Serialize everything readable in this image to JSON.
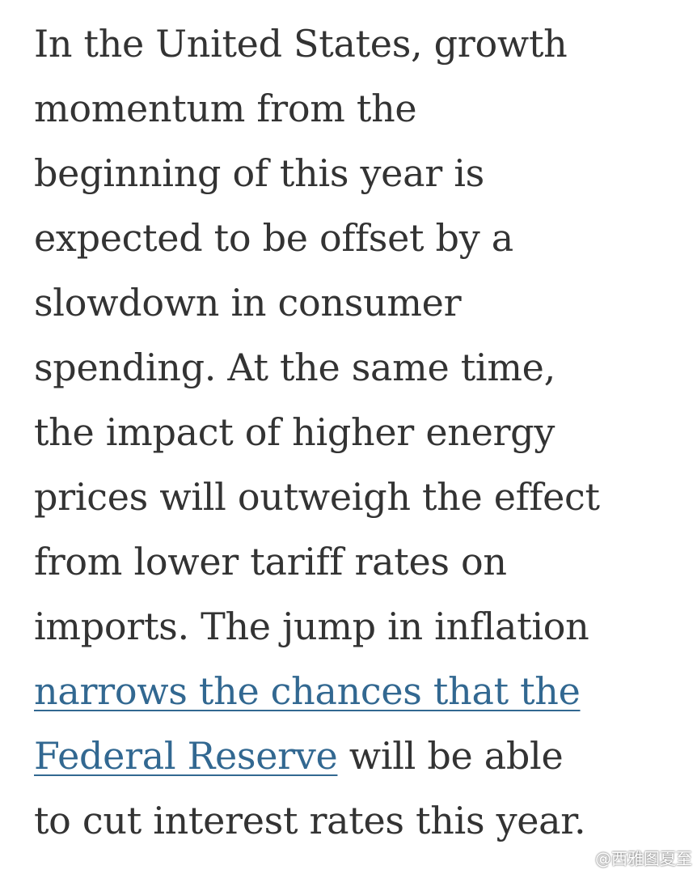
{
  "paragraph": {
    "lines": [
      "In the United States, growth",
      "momentum from the",
      "beginning of this year is",
      "expected to be offset by a",
      "slowdown in consumer",
      "spending. At the same time,",
      "the impact of higher energy",
      "prices will outweigh the effect",
      "from lower tariff rates on",
      "imports. The jump in inflation"
    ],
    "link_line_1": "narrows the chances that the",
    "link_line_2": "Federal Reserve",
    "after_link": " will be able",
    "last_line": "to cut interest rates this year."
  },
  "watermark": {
    "icon": "weibo-icon",
    "text": "@西雅图夏至"
  },
  "colors": {
    "text": "#333333",
    "link": "#326891",
    "background": "#ffffff"
  }
}
